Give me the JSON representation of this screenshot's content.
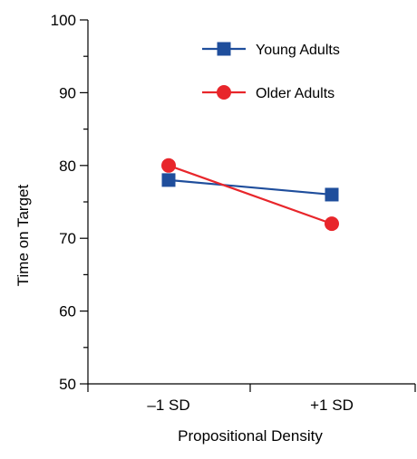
{
  "chart_data": {
    "type": "line",
    "xlabel": "Propositional Density",
    "ylabel": "Time on Target",
    "categories": [
      "–1 SD",
      "+1 SD"
    ],
    "ylim": [
      50,
      100
    ],
    "yticks": [
      50,
      60,
      70,
      80,
      90,
      100
    ],
    "grid": false,
    "legend": {
      "placement": "top-right"
    },
    "series": [
      {
        "name": "Young Adults",
        "values": [
          78,
          76
        ],
        "color": "#1f4e9c",
        "marker": "square"
      },
      {
        "name": "Older Adults",
        "values": [
          80,
          72
        ],
        "color": "#e8262b",
        "marker": "circle"
      }
    ]
  }
}
